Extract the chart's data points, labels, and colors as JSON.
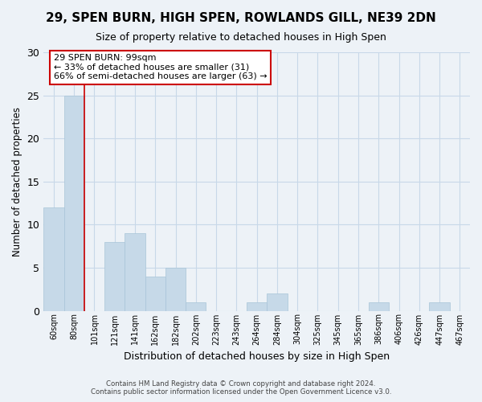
{
  "title_line1": "29, SPEN BURN, HIGH SPEN, ROWLANDS GILL, NE39 2DN",
  "title_line2": "Size of property relative to detached houses in High Spen",
  "xlabel": "Distribution of detached houses by size in High Spen",
  "ylabel": "Number of detached properties",
  "bar_labels": [
    "60sqm",
    "80sqm",
    "101sqm",
    "121sqm",
    "141sqm",
    "162sqm",
    "182sqm",
    "202sqm",
    "223sqm",
    "243sqm",
    "264sqm",
    "284sqm",
    "304sqm",
    "325sqm",
    "345sqm",
    "365sqm",
    "386sqm",
    "406sqm",
    "426sqm",
    "447sqm",
    "467sqm"
  ],
  "bar_values": [
    12,
    25,
    0,
    8,
    9,
    4,
    5,
    1,
    0,
    0,
    1,
    2,
    0,
    0,
    0,
    0,
    1,
    0,
    0,
    1,
    0
  ],
  "bar_color": "#c6d9e8",
  "bar_edge_color": "#a8c4d8",
  "grid_color": "#c8d8e8",
  "background_color": "#edf2f7",
  "vline_color": "#cc0000",
  "vline_x_index": 2,
  "annotation_text": "29 SPEN BURN: 99sqm\n← 33% of detached houses are smaller (31)\n66% of semi-detached houses are larger (63) →",
  "annotation_box_facecolor": "#ffffff",
  "annotation_box_edgecolor": "#cc0000",
  "ylim": [
    0,
    30
  ],
  "yticks": [
    0,
    5,
    10,
    15,
    20,
    25,
    30
  ],
  "title_fontsize": 11,
  "subtitle_fontsize": 9,
  "footer_line1": "Contains HM Land Registry data © Crown copyright and database right 2024.",
  "footer_line2": "Contains public sector information licensed under the Open Government Licence v3.0."
}
